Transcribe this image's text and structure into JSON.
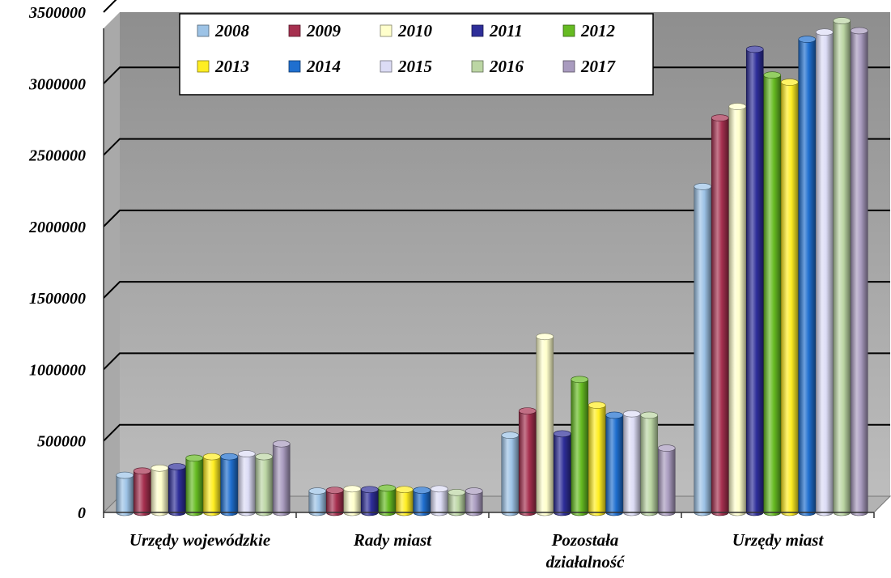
{
  "chart_data": {
    "type": "bar",
    "title": "",
    "xlabel": "",
    "ylabel": "",
    "ylim": [
      0,
      3500000
    ],
    "yticks": [
      "0",
      "500000",
      "1000000",
      "1500000",
      "2000000",
      "2500000",
      "3000000",
      "3500000"
    ],
    "categories": [
      "Urzędy wojewódzkie",
      "Rady miast",
      "Pozostała działalność",
      "Urzędy miast"
    ],
    "grid": true,
    "legend_position": "top-left",
    "series": [
      {
        "name": "2008",
        "color": "#9dc3e6",
        "values": [
          260000,
          150000,
          540000,
          2280000
        ]
      },
      {
        "name": "2009",
        "color": "#a6304f",
        "values": [
          290000,
          155000,
          710000,
          2760000
        ]
      },
      {
        "name": "2010",
        "color": "#ffffcc",
        "values": [
          310000,
          165000,
          1230000,
          2840000
        ]
      },
      {
        "name": "2011",
        "color": "#2e2e99",
        "values": [
          320000,
          160000,
          550000,
          3240000
        ]
      },
      {
        "name": "2012",
        "color": "#66bb22",
        "values": [
          380000,
          170000,
          930000,
          3060000
        ]
      },
      {
        "name": "2013",
        "color": "#ffee22",
        "values": [
          390000,
          160000,
          750000,
          3010000
        ]
      },
      {
        "name": "2014",
        "color": "#1f6fcf",
        "values": [
          390000,
          155000,
          680000,
          3310000
        ]
      },
      {
        "name": "2015",
        "color": "#dcdcf5",
        "values": [
          410000,
          165000,
          690000,
          3360000
        ]
      },
      {
        "name": "2016",
        "color": "#bcd6a4",
        "values": [
          390000,
          140000,
          680000,
          3440000
        ]
      },
      {
        "name": "2017",
        "color": "#a99bbf",
        "values": [
          480000,
          150000,
          450000,
          3370000
        ]
      }
    ]
  }
}
